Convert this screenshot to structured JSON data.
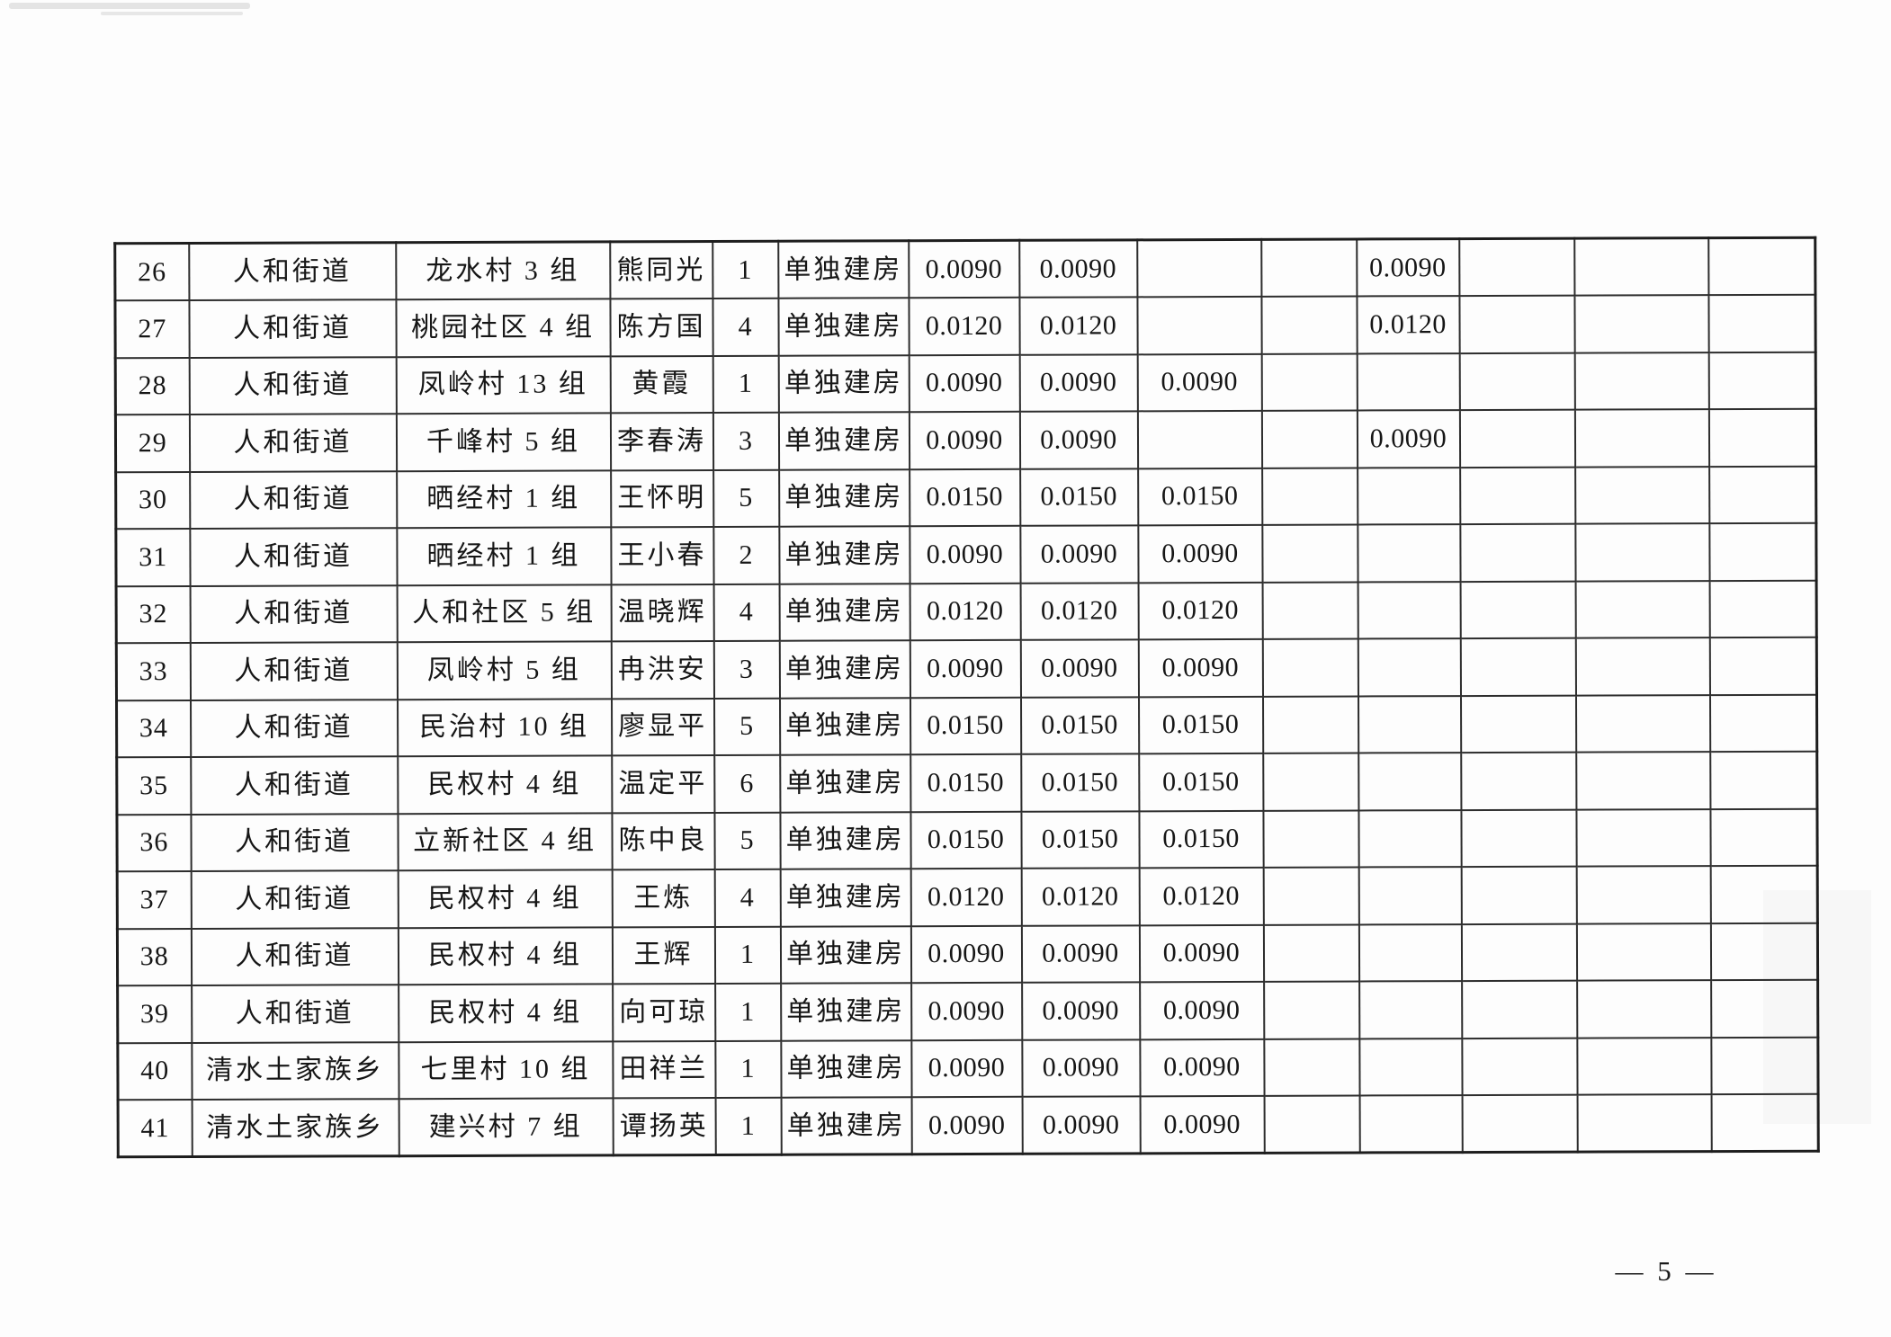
{
  "document": {
    "page_number": "— 5 —"
  },
  "table": {
    "cell_names": [
      "row-number-cell",
      "township-cell",
      "village-group-cell",
      "person-name-cell",
      "count-cell",
      "build-type-cell",
      "value-cell-1",
      "value-cell-2",
      "value-cell-3",
      "value-cell-4",
      "value-cell-5",
      "value-cell-6",
      "value-cell-7",
      "value-cell-8"
    ],
    "rows": [
      [
        "26",
        "人和街道",
        "龙水村 3 组",
        "熊同光",
        "1",
        "单独建房",
        "0.0090",
        "0.0090",
        "",
        "",
        "0.0090",
        "",
        "",
        ""
      ],
      [
        "27",
        "人和街道",
        "桃园社区 4 组",
        "陈方国",
        "4",
        "单独建房",
        "0.0120",
        "0.0120",
        "",
        "",
        "0.0120",
        "",
        "",
        ""
      ],
      [
        "28",
        "人和街道",
        "凤岭村 13 组",
        "黄霞",
        "1",
        "单独建房",
        "0.0090",
        "0.0090",
        "0.0090",
        "",
        "",
        "",
        "",
        ""
      ],
      [
        "29",
        "人和街道",
        "千峰村 5 组",
        "李春涛",
        "3",
        "单独建房",
        "0.0090",
        "0.0090",
        "",
        "",
        "0.0090",
        "",
        "",
        ""
      ],
      [
        "30",
        "人和街道",
        "晒经村 1 组",
        "王怀明",
        "5",
        "单独建房",
        "0.0150",
        "0.0150",
        "0.0150",
        "",
        "",
        "",
        "",
        ""
      ],
      [
        "31",
        "人和街道",
        "晒经村 1 组",
        "王小春",
        "2",
        "单独建房",
        "0.0090",
        "0.0090",
        "0.0090",
        "",
        "",
        "",
        "",
        ""
      ],
      [
        "32",
        "人和街道",
        "人和社区 5 组",
        "温晓辉",
        "4",
        "单独建房",
        "0.0120",
        "0.0120",
        "0.0120",
        "",
        "",
        "",
        "",
        ""
      ],
      [
        "33",
        "人和街道",
        "凤岭村 5 组",
        "冉洪安",
        "3",
        "单独建房",
        "0.0090",
        "0.0090",
        "0.0090",
        "",
        "",
        "",
        "",
        ""
      ],
      [
        "34",
        "人和街道",
        "民治村 10 组",
        "廖显平",
        "5",
        "单独建房",
        "0.0150",
        "0.0150",
        "0.0150",
        "",
        "",
        "",
        "",
        ""
      ],
      [
        "35",
        "人和街道",
        "民权村 4 组",
        "温定平",
        "6",
        "单独建房",
        "0.0150",
        "0.0150",
        "0.0150",
        "",
        "",
        "",
        "",
        ""
      ],
      [
        "36",
        "人和街道",
        "立新社区 4 组",
        "陈中良",
        "5",
        "单独建房",
        "0.0150",
        "0.0150",
        "0.0150",
        "",
        "",
        "",
        "",
        ""
      ],
      [
        "37",
        "人和街道",
        "民权村 4 组",
        "王炼",
        "4",
        "单独建房",
        "0.0120",
        "0.0120",
        "0.0120",
        "",
        "",
        "",
        "",
        ""
      ],
      [
        "38",
        "人和街道",
        "民权村 4 组",
        "王辉",
        "1",
        "单独建房",
        "0.0090",
        "0.0090",
        "0.0090",
        "",
        "",
        "",
        "",
        ""
      ],
      [
        "39",
        "人和街道",
        "民权村 4 组",
        "向可琼",
        "1",
        "单独建房",
        "0.0090",
        "0.0090",
        "0.0090",
        "",
        "",
        "",
        "",
        ""
      ],
      [
        "40",
        "清水土家族乡",
        "七里村 10 组",
        "田祥兰",
        "1",
        "单独建房",
        "0.0090",
        "0.0090",
        "0.0090",
        "",
        "",
        "",
        "",
        ""
      ],
      [
        "41",
        "清水土家族乡",
        "建兴村 7 组",
        "谭扬英",
        "1",
        "单独建房",
        "0.0090",
        "0.0090",
        "0.0090",
        "",
        "",
        "",
        "",
        ""
      ]
    ]
  }
}
